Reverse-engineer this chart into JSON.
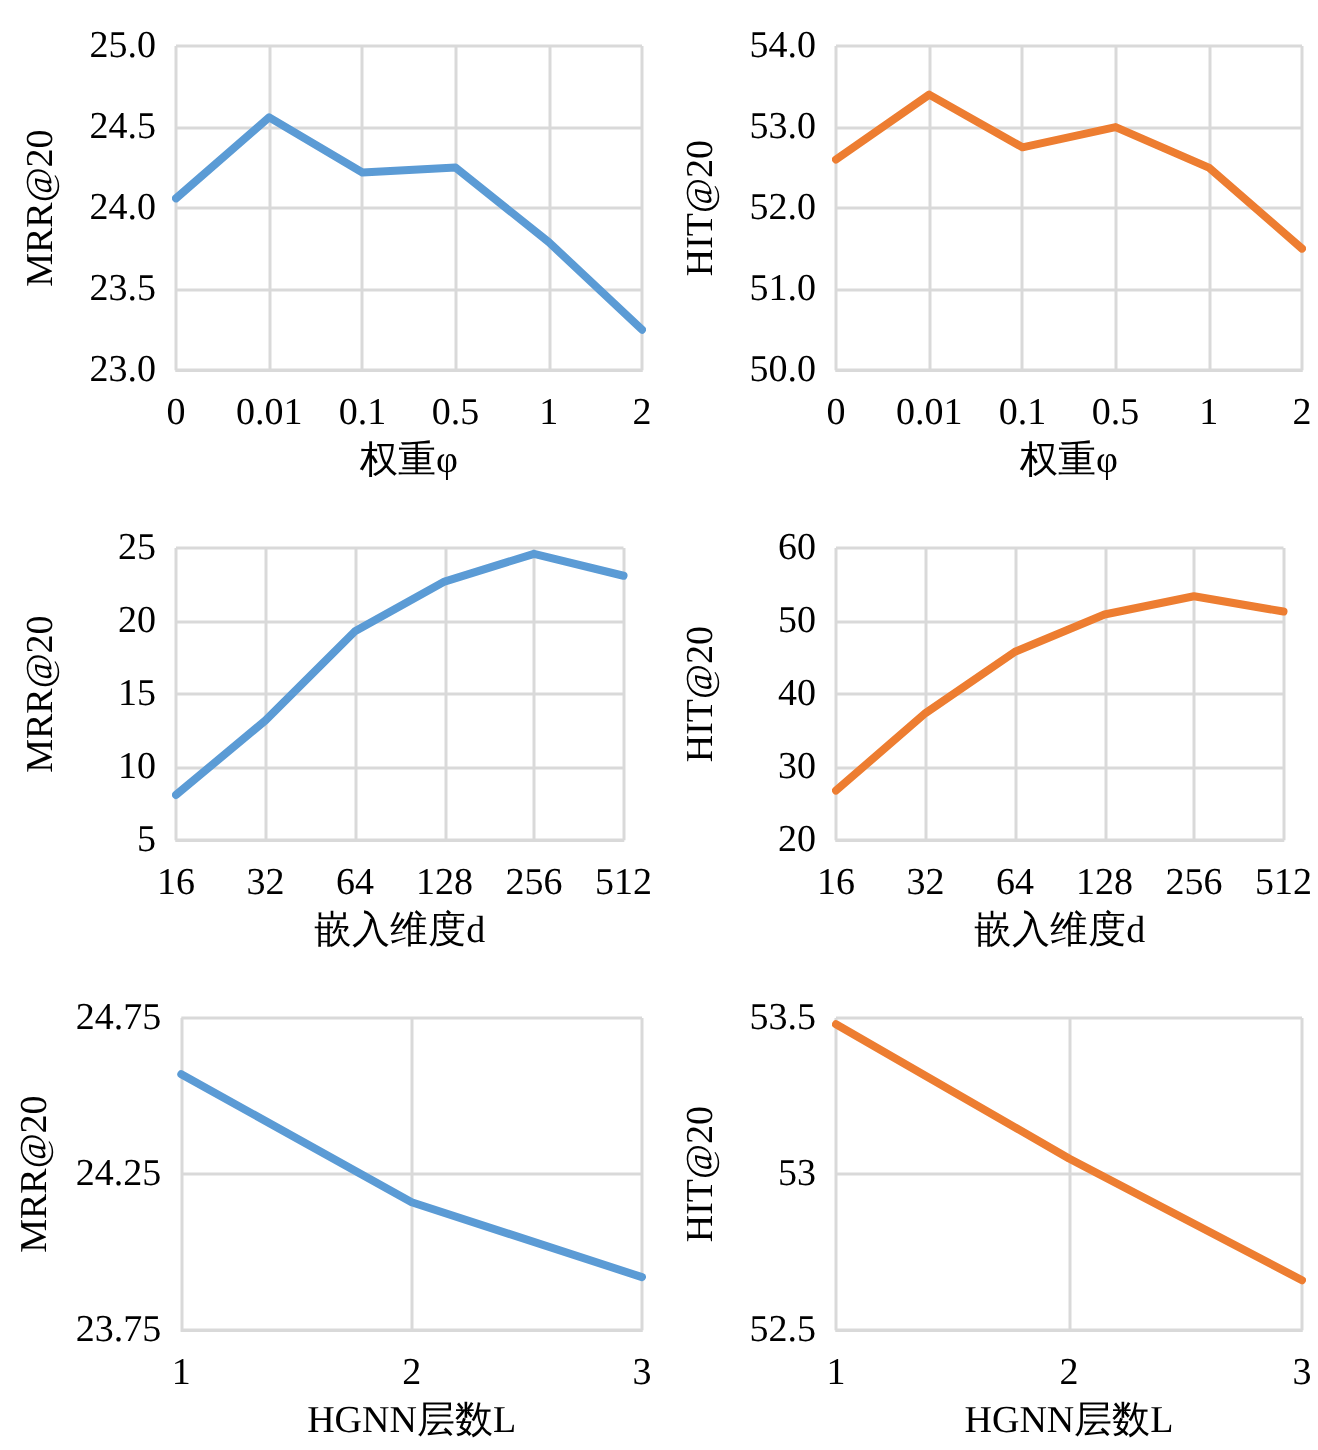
{
  "chart_data": [
    {
      "type": "line",
      "xlabel": "权重φ",
      "ylabel": "MRR@20",
      "categories": [
        "0",
        "0.01",
        "0.1",
        "0.5",
        "1",
        "2"
      ],
      "series": [
        {
          "color": "#5b9bd5",
          "values": [
            24.06,
            24.56,
            24.22,
            24.25,
            23.79,
            23.25
          ]
        }
      ],
      "ylim": [
        23,
        25
      ],
      "yticks": [
        {
          "value": 23,
          "label": "23.0"
        },
        {
          "value": 23.5,
          "label": "23.5"
        },
        {
          "value": 24,
          "label": "24.0"
        },
        {
          "value": 24.5,
          "label": "24.5"
        },
        {
          "value": 25,
          "label": "25.0"
        }
      ],
      "grid": true,
      "marker": "none",
      "line_style": "solid"
    },
    {
      "type": "line",
      "xlabel": "权重φ",
      "ylabel": "HIT@20",
      "categories": [
        "0",
        "0.01",
        "0.1",
        "0.5",
        "1",
        "2"
      ],
      "series": [
        {
          "color": "#ed7d31",
          "values": [
            52.6,
            53.4,
            52.75,
            53.0,
            52.5,
            51.5
          ]
        }
      ],
      "ylim": [
        50,
        54
      ],
      "yticks": [
        {
          "value": 50,
          "label": "50.0"
        },
        {
          "value": 51,
          "label": "51.0"
        },
        {
          "value": 52,
          "label": "52.0"
        },
        {
          "value": 53,
          "label": "53.0"
        },
        {
          "value": 54,
          "label": "54.0"
        }
      ],
      "grid": true,
      "marker": "none",
      "line_style": "solid"
    },
    {
      "type": "line",
      "xlabel": "嵌入维度d",
      "ylabel": "MRR@20",
      "categories": [
        "16",
        "32",
        "64",
        "128",
        "256",
        "512"
      ],
      "series": [
        {
          "color": "#5b9bd5",
          "values": [
            8.1,
            13.2,
            19.3,
            22.7,
            24.6,
            23.1
          ]
        }
      ],
      "ylim": [
        5,
        25
      ],
      "yticks": [
        5,
        10,
        15,
        20,
        25
      ],
      "grid": true,
      "marker": "none",
      "line_style": "solid"
    },
    {
      "type": "line",
      "xlabel": "嵌入维度d",
      "ylabel": "HIT@20",
      "categories": [
        "16",
        "32",
        "64",
        "128",
        "256",
        "512"
      ],
      "series": [
        {
          "color": "#ed7d31",
          "values": [
            26.8,
            37.4,
            45.8,
            50.9,
            53.4,
            51.3
          ]
        }
      ],
      "ylim": [
        20,
        60
      ],
      "yticks": [
        20,
        30,
        40,
        50,
        60
      ],
      "grid": true,
      "marker": "none",
      "line_style": "solid"
    },
    {
      "type": "line",
      "xlabel": "HGNN层数L",
      "ylabel": "MRR@20",
      "categories": [
        "1",
        "2",
        "3"
      ],
      "series": [
        {
          "color": "#5b9bd5",
          "values": [
            24.57,
            24.16,
            23.92
          ]
        }
      ],
      "ylim": [
        23.75,
        24.75
      ],
      "yticks": [
        23.75,
        24.25,
        24.75
      ],
      "grid": true,
      "marker": "none",
      "line_style": "solid"
    },
    {
      "type": "line",
      "xlabel": "HGNN层数L",
      "ylabel": "HIT@20",
      "categories": [
        "1",
        "2",
        "3"
      ],
      "series": [
        {
          "color": "#ed7d31",
          "values": [
            53.48,
            53.05,
            52.66
          ]
        }
      ],
      "ylim": [
        52.5,
        53.5
      ],
      "yticks": [
        52.5,
        53,
        53.5
      ],
      "grid": true,
      "marker": "none",
      "line_style": "solid"
    }
  ]
}
